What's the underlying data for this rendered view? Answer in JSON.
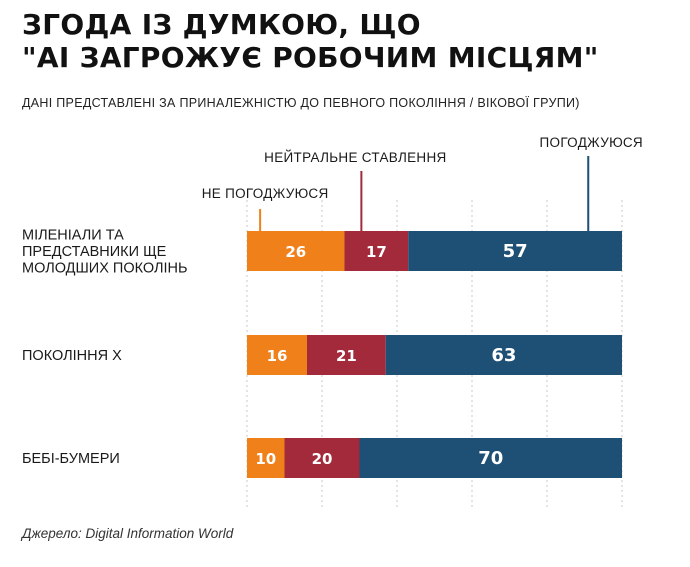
{
  "header": {
    "title_line1": "ЗГОДА ІЗ ДУМКОЮ, ЩО",
    "title_line2": "\"АІ ЗАГРОЖУЄ РОБОЧИМ МІСЦЯМ\"",
    "subtitle": "ДАНІ ПРЕДСТАВЛЕНІ ЗА ПРИНАЛЕЖНІСТЮ ДО ПЕВНОГО ПОКОЛІННЯ / ВІКОВОЇ ГРУПИ)"
  },
  "source": "Джерело: Digital Information World",
  "colors": {
    "disagree": "#f08019",
    "neutral": "#a32a3a",
    "agree": "#1e4f74",
    "grid": "#c8c8c8"
  },
  "chart_data": {
    "type": "bar",
    "orientation": "horizontal",
    "stacked": true,
    "title": "ЗГОДА ІЗ ДУМКОЮ, ЩО \"АІ ЗАГРОЖУЄ РОБОЧИМ МІСЦЯМ\"",
    "categories": [
      [
        "МІЛЕНІАЛИ ТА",
        "ПРЕДСТАВНИКИ ЩЕ",
        "МОЛОДШИХ ПОКОЛІНЬ"
      ],
      [
        "ПОКОЛІННЯ Х"
      ],
      [
        "БЕБІ-БУМЕРИ"
      ]
    ],
    "series": [
      {
        "name": "НЕ ПОГОДЖУЮСЯ",
        "color": "#f08019",
        "values": [
          26,
          16,
          10
        ]
      },
      {
        "name": "НЕЙТРАЛЬНЕ СТАВЛЕННЯ",
        "color": "#a32a3a",
        "values": [
          17,
          21,
          20
        ]
      },
      {
        "name": "ПОГОДЖУЮСЯ",
        "color": "#1e4f74",
        "values": [
          57,
          63,
          70
        ]
      }
    ],
    "xlim": [
      0,
      100
    ],
    "grid": true,
    "legend": "callouts above first bar"
  }
}
